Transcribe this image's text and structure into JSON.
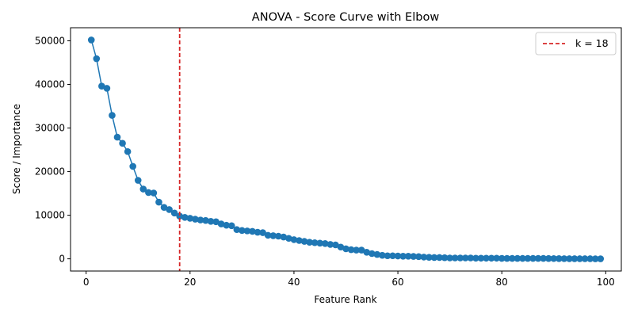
{
  "chart_data": {
    "type": "line",
    "title": "ANOVA - Score Curve with Elbow",
    "xlabel": "Feature Rank",
    "ylabel": "Score / Importance",
    "xlim": [
      -3,
      103
    ],
    "ylim": [
      -2800,
      53000
    ],
    "x_ticks": [
      0,
      20,
      40,
      60,
      80,
      100
    ],
    "y_ticks": [
      0,
      10000,
      20000,
      30000,
      40000,
      50000
    ],
    "grid": false,
    "legend_position": "top-right",
    "colors": {
      "series": "#1f77b4",
      "elbow": "#d62728",
      "axis": "#000000"
    },
    "series": [
      {
        "marker": "circle",
        "x": [
          1,
          2,
          3,
          4,
          5,
          6,
          7,
          8,
          9,
          10,
          11,
          12,
          13,
          14,
          15,
          16,
          17,
          18,
          19,
          20,
          21,
          22,
          23,
          24,
          25,
          26,
          27,
          28,
          29,
          30,
          31,
          32,
          33,
          34,
          35,
          36,
          37,
          38,
          39,
          40,
          41,
          42,
          43,
          44,
          45,
          46,
          47,
          48,
          49,
          50,
          51,
          52,
          53,
          54,
          55,
          56,
          57,
          58,
          59,
          60,
          61,
          62,
          63,
          64,
          65,
          66,
          67,
          68,
          69,
          70,
          71,
          72,
          73,
          74,
          75,
          76,
          77,
          78,
          79,
          80,
          81,
          82,
          83,
          84,
          85,
          86,
          87,
          88,
          89,
          90,
          91,
          92,
          93,
          94,
          95,
          96,
          97,
          98,
          99
        ],
        "y": [
          50200,
          45900,
          39600,
          39100,
          32900,
          27900,
          26500,
          24600,
          21200,
          18000,
          16000,
          15200,
          15100,
          13000,
          11800,
          11300,
          10500,
          9800,
          9500,
          9300,
          9100,
          8900,
          8800,
          8600,
          8500,
          8000,
          7700,
          7600,
          6700,
          6500,
          6400,
          6300,
          6100,
          6000,
          5400,
          5300,
          5200,
          5000,
          4700,
          4400,
          4200,
          4000,
          3800,
          3700,
          3600,
          3500,
          3300,
          3200,
          2700,
          2300,
          2100,
          2000,
          2000,
          1500,
          1200,
          1000,
          800,
          700,
          700,
          650,
          600,
          600,
          550,
          500,
          400,
          350,
          300,
          300,
          250,
          200,
          200,
          200,
          200,
          200,
          150,
          150,
          150,
          150,
          150,
          100,
          100,
          100,
          100,
          100,
          100,
          100,
          100,
          100,
          80,
          60,
          50,
          40,
          30,
          30,
          20,
          20,
          20,
          10,
          10
        ]
      }
    ],
    "elbow": {
      "x": 18,
      "label": "k = 18"
    }
  }
}
